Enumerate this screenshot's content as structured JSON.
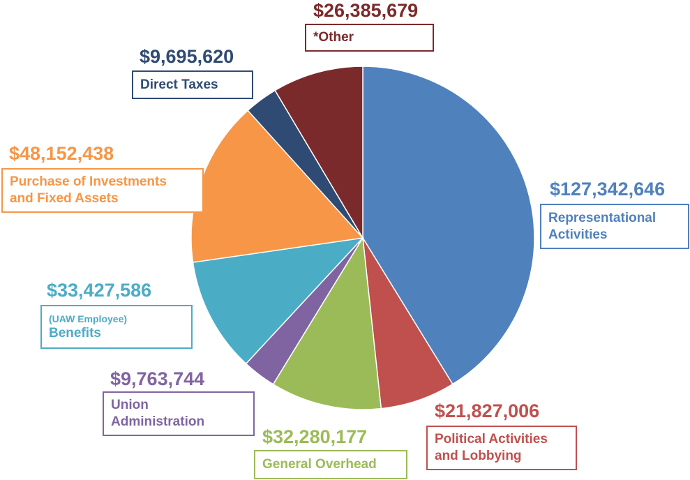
{
  "chart_data": {
    "type": "pie",
    "slices": [
      {
        "key": "representational",
        "amount": "$127,342,646",
        "value": 127342646,
        "lines": [
          "Representational",
          "Activities"
        ],
        "color": "#4f81bd"
      },
      {
        "key": "political",
        "amount": "$21,827,006",
        "value": 21827006,
        "lines": [
          "Political Activities",
          "and Lobbying"
        ],
        "color": "#c0504d"
      },
      {
        "key": "overhead",
        "amount": "$32,280,177",
        "value": 32280177,
        "lines": [
          "General Overhead"
        ],
        "color": "#9bbb59"
      },
      {
        "key": "union-admin",
        "amount": "$9,763,744",
        "value": 9763744,
        "lines": [
          "Union",
          "Administration"
        ],
        "color": "#8064a2"
      },
      {
        "key": "benefits",
        "amount": "$33,427,586",
        "value": 33427586,
        "sublabel": "(UAW Employee)",
        "lines": [
          "Benefits"
        ],
        "color": "#4bacc6"
      },
      {
        "key": "investments",
        "amount": "$48,152,438",
        "value": 48152438,
        "lines": [
          "Purchase of Investments",
          "and Fixed Assets"
        ],
        "color": "#f79646"
      },
      {
        "key": "direct-taxes",
        "amount": "$9,695,620",
        "value": 9695620,
        "lines": [
          "Direct Taxes"
        ],
        "color": "#2f4b73"
      },
      {
        "key": "other",
        "amount": "$26,385,679",
        "value": 26385679,
        "lines": [
          "*Other"
        ],
        "color": "#7b2a2b"
      }
    ]
  }
}
